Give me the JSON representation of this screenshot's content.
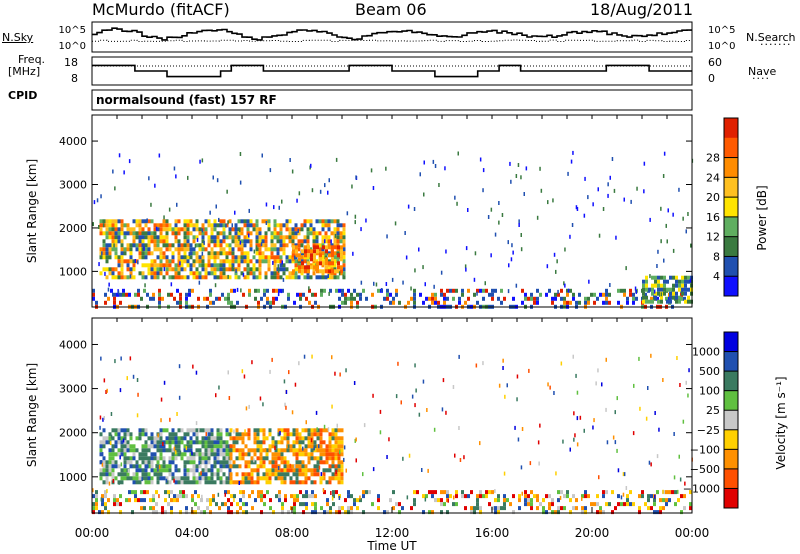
{
  "header": {
    "station": "McMurdo (fitACF)",
    "beam": "Beam 06",
    "date": "18/Aug/2011",
    "cpid_label": "CPID",
    "cpid_value": "normalsound (fast) 157 RF"
  },
  "side_labels": {
    "nsky": "N.Sky",
    "nsky_ticks": [
      "10^5",
      "10^0"
    ],
    "nsearch": "N.Search",
    "nsearch_ticks": [
      "10^5",
      "10^0"
    ],
    "freq_line1": "Freq.",
    "freq_line2": "[MHz]",
    "freq_ticks": [
      "18",
      "8"
    ],
    "nave": "Nave",
    "nave_ticks": [
      "60",
      "0"
    ]
  },
  "chart_data": [
    {
      "type": "heatmap",
      "name": "power-panel",
      "ylabel": "Slant Range [km]",
      "yticks": [
        1000,
        2000,
        3000,
        4000
      ],
      "ylim": [
        180,
        4600
      ],
      "xlim": [
        0,
        24
      ],
      "colorbar": {
        "label": "Power [dB]",
        "ticks": [
          "4",
          "8",
          "12",
          "16",
          "20",
          "24",
          "28"
        ],
        "colors": [
          "#1010ff",
          "#2050b0",
          "#3a7a40",
          "#5fae60",
          "#ffe400",
          "#ffc020",
          "#ff8c00",
          "#ff5a00",
          "#e02000"
        ]
      },
      "regions": [
        {
          "t0": 0.3,
          "t1": 10.1,
          "r0": 900,
          "r1": 2200,
          "level": "high"
        },
        {
          "t0": 8.0,
          "t1": 10.0,
          "r0": 1000,
          "r1": 1600,
          "level": "peak"
        },
        {
          "t0": 0.0,
          "t1": 24.0,
          "r0": 180,
          "r1": 600,
          "level": "low"
        },
        {
          "t0": 22.0,
          "t1": 24.0,
          "r0": 300,
          "r1": 900,
          "level": "mid"
        }
      ]
    },
    {
      "type": "heatmap",
      "name": "velocity-panel",
      "ylabel": "Slant Range [km]",
      "xlabel": "Time UT",
      "xticks": [
        "00:00",
        "04:00",
        "08:00",
        "12:00",
        "16:00",
        "20:00",
        "00:00"
      ],
      "yticks": [
        1000,
        2000,
        3000,
        4000
      ],
      "ylim": [
        180,
        4600
      ],
      "xlim": [
        0,
        24
      ],
      "colorbar": {
        "label": "Velocity [m s⁻¹]",
        "ticks": [
          "1000",
          "500",
          "100",
          "25",
          "−25",
          "−100",
          "−500",
          "−1000"
        ],
        "colors": [
          "#0000e0",
          "#2050b0",
          "#3a7a60",
          "#60c040",
          "#c8c8c8",
          "#ffd000",
          "#ff9000",
          "#ff5000",
          "#e00000"
        ]
      },
      "regions": [
        {
          "t0": 0.3,
          "t1": 5.5,
          "r0": 900,
          "r1": 2100,
          "level": "toward"
        },
        {
          "t0": 5.5,
          "t1": 10.0,
          "r0": 900,
          "r1": 2100,
          "level": "away"
        },
        {
          "t0": 0.0,
          "t1": 24.0,
          "r0": 180,
          "r1": 700,
          "level": "mixed"
        }
      ]
    },
    {
      "type": "line",
      "name": "nsky-panel",
      "ylim": [
        0,
        5
      ]
    },
    {
      "type": "line",
      "name": "freq-panel",
      "ylim": [
        8,
        18
      ]
    }
  ]
}
